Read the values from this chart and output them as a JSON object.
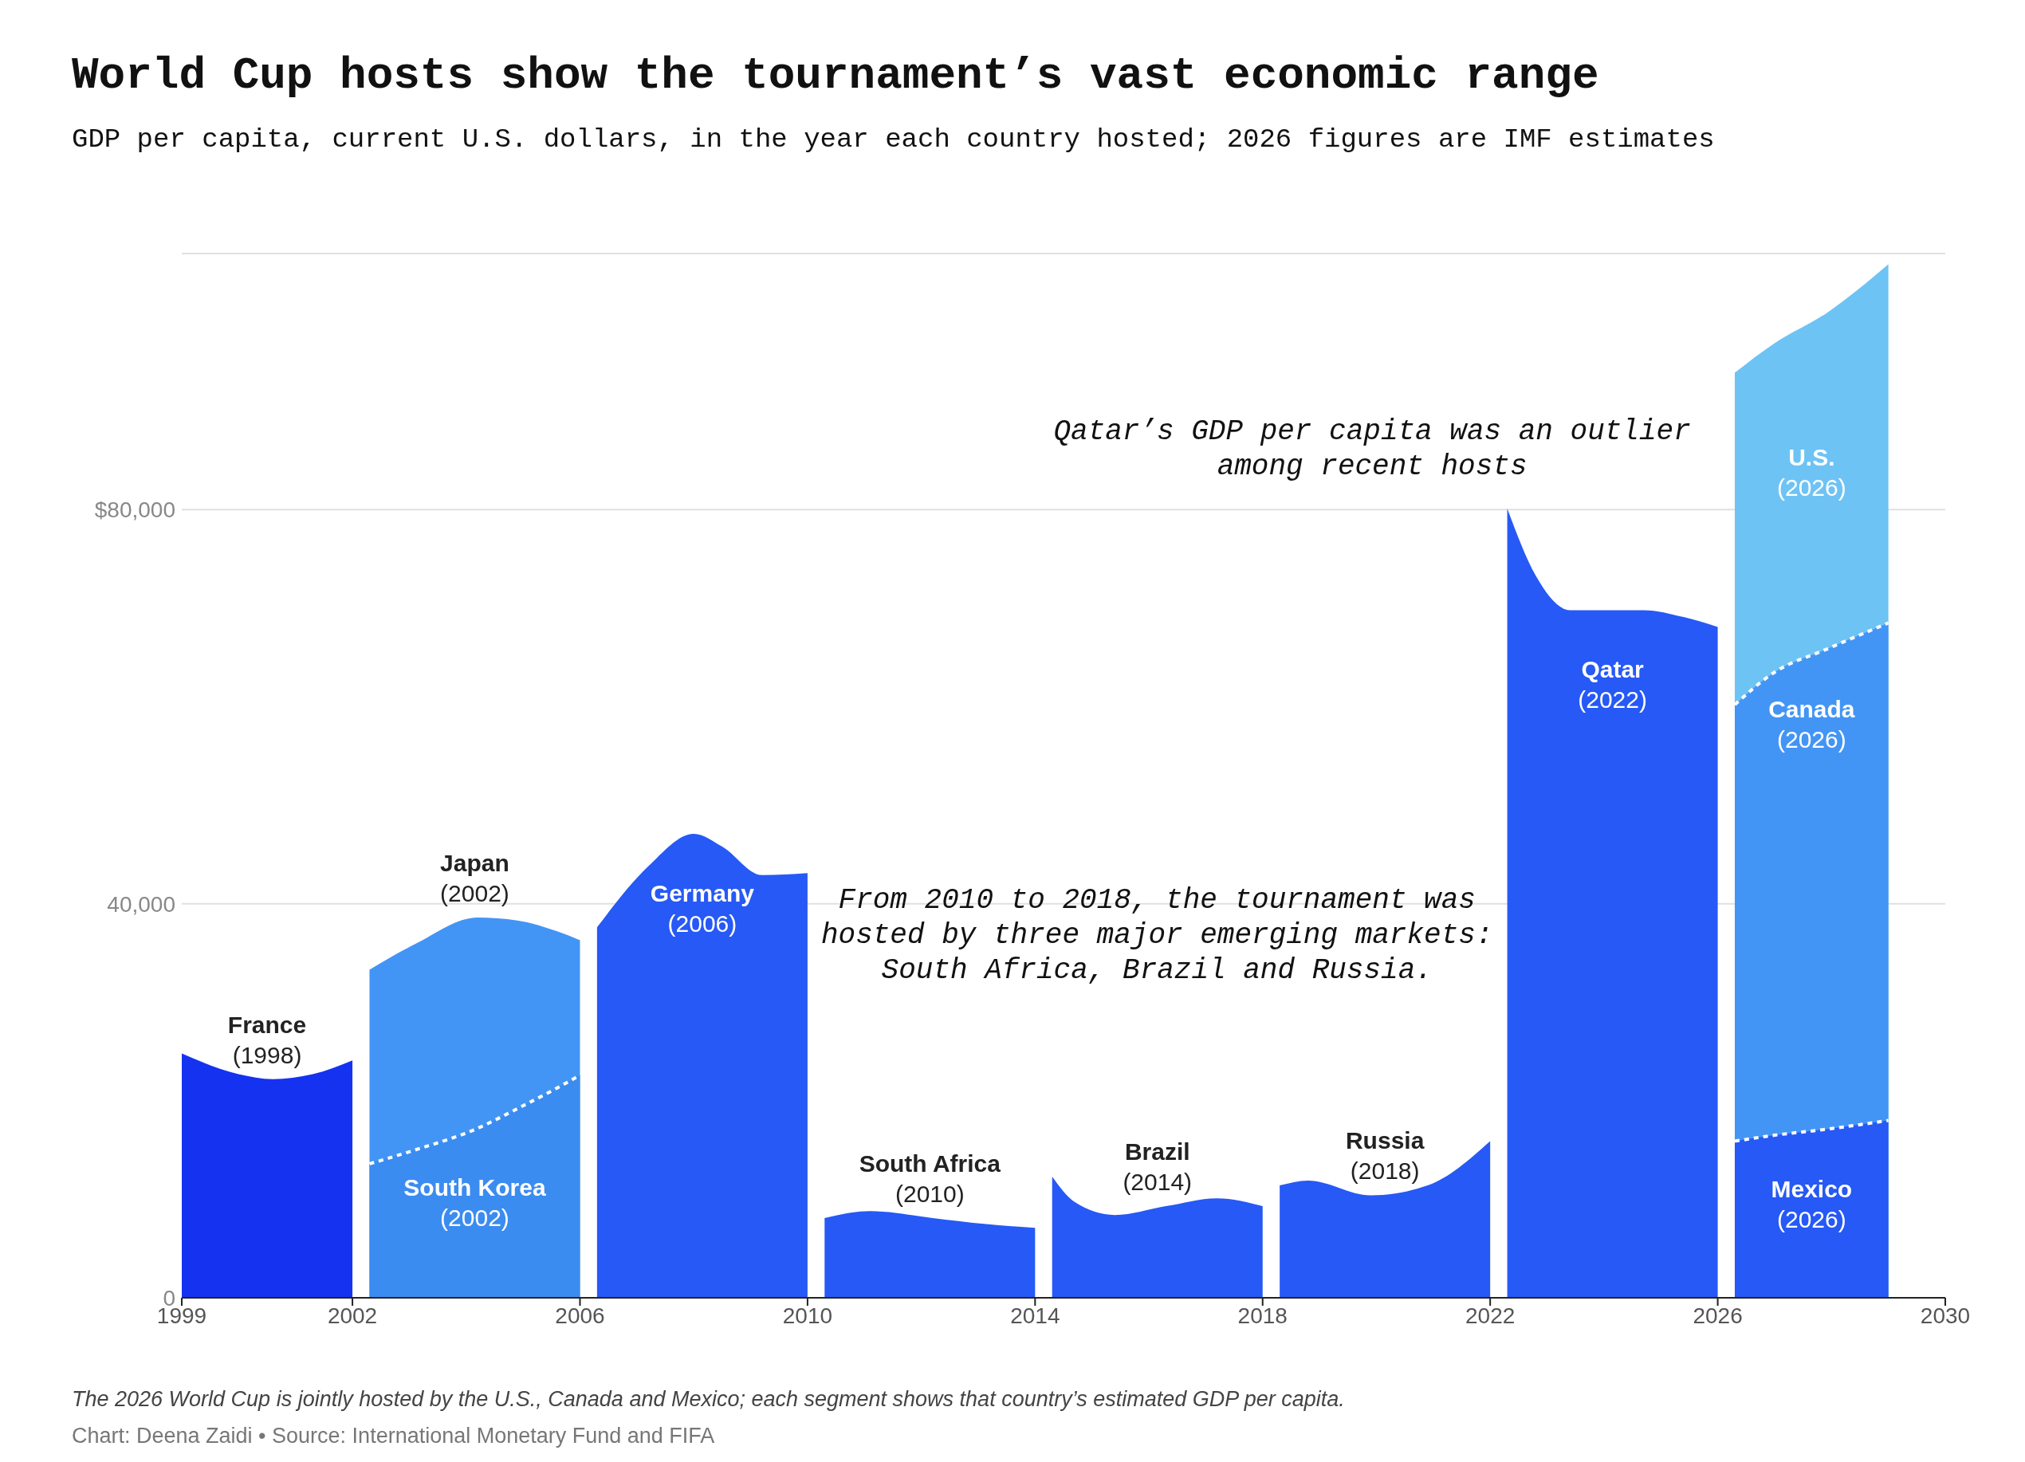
{
  "chart_data": {
    "type": "area",
    "title": "World Cup hosts show the tournament’s vast economic range",
    "subtitle": "GDP per capita, current U.S. dollars, in the year each country hosted; 2026 figures are IMF estimates",
    "xlim": [
      1999,
      2030
    ],
    "xticks": [
      1999,
      2002,
      2006,
      2010,
      2014,
      2018,
      2022,
      2026,
      2030
    ],
    "ylim": [
      0,
      106000
    ],
    "yticks": [
      0,
      {
        "value": 40000,
        "label": "40,000"
      },
      {
        "value": 80000,
        "label": "$80,000"
      }
    ],
    "grid": "y",
    "legend": false,
    "series": [
      {
        "name": "France (1998)",
        "color": "#1532f0",
        "x": [
          1999,
          2000,
          2000.6,
          2001.3,
          2002
        ],
        "values": [
          24800,
          22700,
          22200,
          22700,
          24100
        ]
      },
      {
        "name": "Japan (2002)",
        "color": "#4395f5",
        "x": [
          2002.3,
          2003.1,
          2004.2,
          2004.9,
          2005.6,
          2006
        ],
        "values": [
          33300,
          35900,
          38600,
          38300,
          37200,
          36300
        ]
      },
      {
        "name": "South Korea (2002)",
        "color": "#3b8cf0",
        "line_style": "dotted",
        "x": [
          2002.3,
          2003.1,
          2004.2,
          2004.9,
          2005.6,
          2006
        ],
        "values": [
          13600,
          15000,
          17200,
          19200,
          21300,
          22600
        ]
      },
      {
        "name": "Germany (2006)",
        "color": "#2659f5",
        "x": [
          2006.3,
          2007.2,
          2008,
          2008.5,
          2009.2,
          2010
        ],
        "values": [
          37600,
          43800,
          47100,
          45800,
          42900,
          43100
        ]
      },
      {
        "name": "South Africa (2010)",
        "color": "#2659f5",
        "x": [
          2010.3,
          2011.1,
          2012.2,
          2013.1,
          2014
        ],
        "values": [
          8100,
          8800,
          8100,
          7500,
          7100
        ]
      },
      {
        "name": "Brazil (2014)",
        "color": "#2659f5",
        "x": [
          2014.3,
          2014.7,
          2015.4,
          2016.3,
          2017.2,
          2018
        ],
        "values": [
          12300,
          9700,
          8400,
          9300,
          10100,
          9300
        ]
      },
      {
        "name": "Russia (2018)",
        "color": "#2659f5",
        "x": [
          2018.3,
          2018.8,
          2019.9,
          2020.9,
          2022
        ],
        "values": [
          11400,
          11900,
          10400,
          11400,
          15900
        ]
      },
      {
        "name": "Qatar (2022)",
        "color": "#2659f5",
        "x": [
          2022.3,
          2022.8,
          2023.4,
          2024.7,
          2025.4,
          2026
        ],
        "values": [
          80100,
          73300,
          69800,
          69800,
          69100,
          68100
        ]
      },
      {
        "name": "U.S. (2026)",
        "color": "#6ec3f5",
        "x": [
          2026.3,
          2027,
          2027.9,
          2029
        ],
        "values": [
          93900,
          96900,
          99900,
          104900
        ]
      },
      {
        "name": "Canada (2026)",
        "color": "#4395f5",
        "line_style": "dotted",
        "x": [
          2026.3,
          2027,
          2027.9,
          2029
        ],
        "values": [
          60200,
          63500,
          65800,
          68500
        ]
      },
      {
        "name": "Mexico (2026)",
        "color": "#2659f5",
        "line_style": "dotted",
        "x": [
          2026.3,
          2027,
          2027.9,
          2029
        ],
        "values": [
          15900,
          16500,
          17100,
          18000
        ]
      }
    ],
    "annotations": [
      "Qatar’s GDP per capita was an outlier\namong recent hosts",
      "From 2010 to 2018, the tournament was\nhosted by three major emerging markets:\nSouth Africa, Brazil and Russia.",
      "The 2026 World Cup is jointly hosted by the U.S., Canada and Mexico; each segment shows that country’s estimated GDP per capita.",
      "Chart: Deena Zaidi • Source: International Monetary Fund and FIFA"
    ]
  }
}
